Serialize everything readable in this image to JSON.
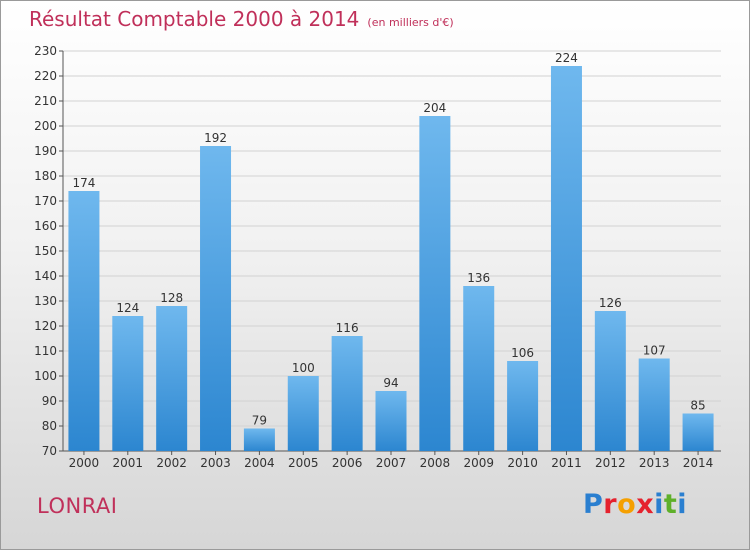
{
  "title": "Résultat Comptable 2000 à 2014",
  "unit": "(en milliers d'€)",
  "commune": "LONRAI",
  "brand": {
    "parts": [
      "P",
      "r",
      "o",
      "x",
      "i",
      "t",
      "i"
    ],
    "colors": [
      "#2a7fd0",
      "#e5222e",
      "#f5a000",
      "#e5222e",
      "#2a7fd0",
      "#5fb02a",
      "#2a7fd0"
    ]
  },
  "colors": {
    "bar_light": "#6fb8ee",
    "bar_dark": "#2c86d0",
    "accent": "#c0305a"
  },
  "chart_data": {
    "type": "bar",
    "categories": [
      "2000",
      "2001",
      "2002",
      "2003",
      "2004",
      "2005",
      "2006",
      "2007",
      "2008",
      "2009",
      "2010",
      "2011",
      "2012",
      "2013",
      "2014"
    ],
    "values": [
      174,
      124,
      128,
      192,
      79,
      100,
      116,
      94,
      204,
      136,
      106,
      224,
      126,
      107,
      85
    ],
    "ylim": [
      70,
      230
    ],
    "yticks": [
      70,
      80,
      90,
      100,
      110,
      120,
      130,
      140,
      150,
      160,
      170,
      180,
      190,
      200,
      210,
      220,
      230
    ],
    "grid": true
  }
}
